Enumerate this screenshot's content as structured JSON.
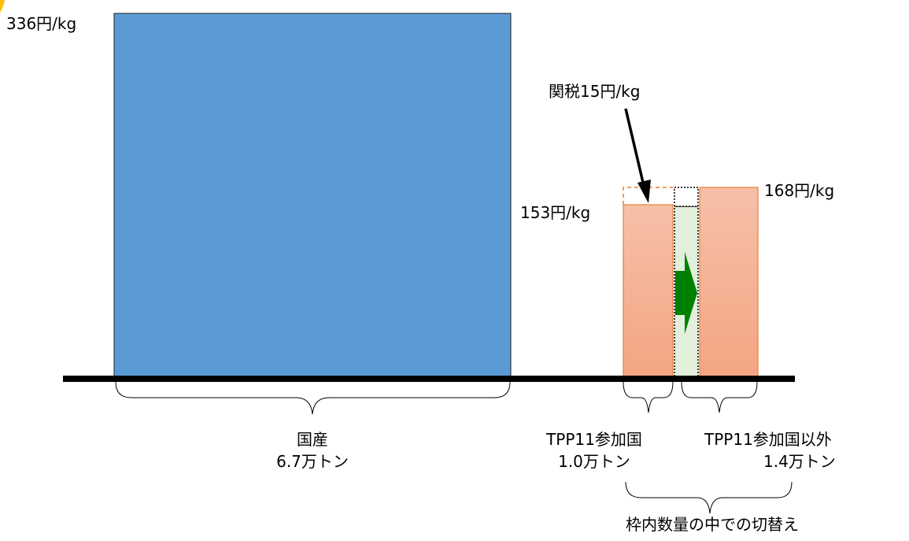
{
  "prices": {
    "domestic": "336円/kg",
    "tpp_member": "153円/kg",
    "non_member": "168円/kg"
  },
  "tariff_label": "関税15円/kg",
  "groups": {
    "domestic": {
      "name": "国産",
      "volume": "6.7万トン"
    },
    "tpp_member": {
      "name": "TPP11参加国",
      "volume": "1.0万トン"
    },
    "non_member": {
      "name": "TPP11参加国以外",
      "volume": "1.4万トン"
    }
  },
  "switch_label": "枠内数量の中での切替え",
  "colors": {
    "domestic": "#5B9BD5",
    "import_fill_top": "#F6C0A8",
    "import_fill_bottom": "#F4A583",
    "import_stroke": "#ED7D31",
    "transfer_fill": "#E2EFDA",
    "arrow": "#008000"
  }
}
